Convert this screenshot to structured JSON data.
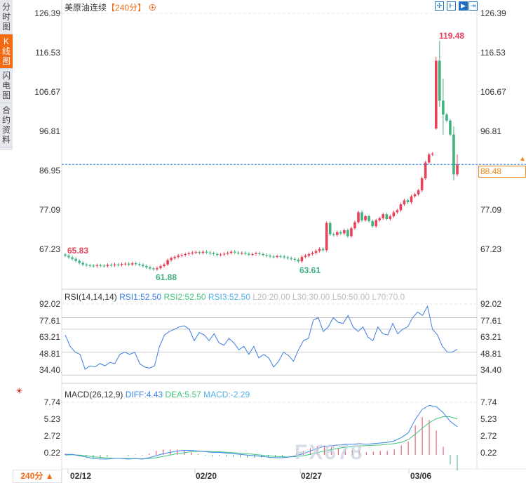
{
  "sidebar": {
    "tabs": [
      {
        "label": "分时图",
        "active": false
      },
      {
        "label": "K线图",
        "active": true
      },
      {
        "label": "闪电图",
        "active": false
      },
      {
        "label": "合约资料",
        "active": false
      }
    ]
  },
  "header": {
    "title": "美原油连续",
    "period": "【240分】",
    "zoom_icon": "plus-circle-icon"
  },
  "toolbar": {
    "icons": [
      "crosshair-icon",
      "range-icon",
      "play-icon",
      "exit-right-icon"
    ]
  },
  "colors": {
    "up": "#e8415a",
    "down": "#3fb27f",
    "accent": "#f26a12",
    "rsi1": "#3a7de0",
    "rsi2": "#3fc47a",
    "rsi3": "#4fb0e8",
    "diff": "#3a85e8",
    "dea": "#3fc47a"
  },
  "price_axis": {
    "labels": [
      "126.39",
      "116.53",
      "106.67",
      "96.81",
      "86.95",
      "77.09",
      "67.23"
    ],
    "max": 126.39,
    "min": 67.23
  },
  "current_price": "88.48",
  "markers": {
    "high": "119.48",
    "low1": "65.83",
    "low2": "61.88",
    "low3": "63.61"
  },
  "candles": {
    "close": [
      65.6,
      65.2,
      64.8,
      64.3,
      63.8,
      63.4,
      63.2,
      63.1,
      63.0,
      63.2,
      63.1,
      63.0,
      63.3,
      63.2,
      63.4,
      63.3,
      63.5,
      63.6,
      63.4,
      63.7,
      63.5,
      63.3,
      63.0,
      62.7,
      62.4,
      62.2,
      62.5,
      63.0,
      63.4,
      64.5,
      65.0,
      65.3,
      65.6,
      65.8,
      66.0,
      66.2,
      66.4,
      66.5,
      66.3,
      66.6,
      66.4,
      66.2,
      66.0,
      65.8,
      65.9,
      66.1,
      66.3,
      66.6,
      66.4,
      66.2,
      66.3,
      66.1,
      65.9,
      66.0,
      66.2,
      66.0,
      65.8,
      65.6,
      65.4,
      65.3,
      65.5,
      65.4,
      65.2,
      65.0,
      64.8,
      64.6,
      64.2,
      65.3,
      65.6,
      66.0,
      66.3,
      66.8,
      67.3,
      67.0,
      73.8,
      71.0,
      70.8,
      71.5,
      71.2,
      72.0,
      70.5,
      72.5,
      74.0,
      76.5,
      74.5,
      75.5,
      74.3,
      73.0,
      74.5,
      75.0,
      76.0,
      74.8,
      75.5,
      76.5,
      77.0,
      78.5,
      79.5,
      79.0,
      80.5,
      81.0,
      82.0,
      85.0,
      89.0,
      91.0,
      91.2,
      114.5,
      104.5,
      101.0,
      99.5,
      96.0,
      86.0,
      88.48
    ],
    "first_open": 65.9,
    "special": {
      "105": [
        97.5,
        115.5,
        97.2,
        114.5
      ],
      "106": [
        114.5,
        119.48,
        103.0,
        104.5
      ],
      "107": [
        104.5,
        110.0,
        96.0,
        101.0
      ],
      "110": [
        96.0,
        98.0,
        84.5,
        86.0
      ],
      "111": [
        86.0,
        91.0,
        85.5,
        88.48
      ]
    }
  },
  "rsi": {
    "label": "RSI(14,14,14)",
    "rsi1": "RSI1:52.50",
    "rsi2": "RSI2:52.50",
    "rsi3": "RSI3:52.50",
    "l20": "L20:20.00",
    "l30": "L30:30.00",
    "l50": "L50:50.00",
    "l70": "L70:70.0",
    "axis": [
      "92.02",
      "77.61",
      "63.21",
      "48.81",
      "34.40"
    ],
    "max": 92.02,
    "min": 34.4,
    "values": [
      65,
      55,
      50,
      48,
      35,
      38,
      37,
      40,
      38,
      41,
      40,
      48,
      50,
      48,
      50,
      40,
      37,
      36,
      38,
      55,
      65,
      68,
      70,
      72,
      73,
      70,
      60,
      67,
      65,
      60,
      66,
      58,
      56,
      62,
      58,
      52,
      55,
      48,
      55,
      45,
      48,
      45,
      37,
      42,
      50,
      47,
      42,
      52,
      60,
      62,
      78,
      80,
      68,
      72,
      80,
      76,
      75,
      82,
      72,
      68,
      72,
      63,
      60,
      72,
      66,
      65,
      75,
      66,
      70,
      72,
      80,
      85,
      82,
      90,
      70,
      65,
      55,
      50,
      50,
      52.5
    ]
  },
  "macd": {
    "label": "MACD(26,12,9)",
    "diff_label": "DIFF:4.43",
    "dea_label": "DEA:5.57",
    "macd_label": "MACD:-2.29",
    "axis": [
      "7.74",
      "5.23",
      "2.72",
      "0.22"
    ],
    "max": 7.74,
    "min": 0.22,
    "diff": [
      0.3,
      0.3,
      0.1,
      -0.1,
      -0.3,
      -0.4,
      -0.4,
      -0.3,
      -0.3,
      -0.4,
      -0.3,
      -0.4,
      -0.2,
      0.1,
      0.4,
      0.6,
      0.8,
      0.9,
      0.9,
      0.8,
      0.7,
      0.6,
      0.6,
      0.5,
      0.4,
      0.3,
      0.2,
      0.1,
      0.0,
      -0.1,
      -0.2,
      -0.2,
      -0.1,
      0.1,
      0.4,
      0.8,
      1.2,
      1.5,
      1.6,
      1.7,
      1.8,
      1.8,
      1.9,
      1.8,
      1.9,
      2.0,
      2.1,
      2.3,
      2.8,
      3.5,
      5.5,
      7.0,
      7.6,
      7.4,
      6.5,
      5.2,
      4.43
    ],
    "dea": [
      0.2,
      0.25,
      0.2,
      0.1,
      -0.05,
      -0.15,
      -0.25,
      -0.3,
      -0.3,
      -0.32,
      -0.33,
      -0.35,
      -0.3,
      -0.2,
      0,
      0.2,
      0.4,
      0.55,
      0.7,
      0.75,
      0.75,
      0.7,
      0.68,
      0.62,
      0.55,
      0.48,
      0.4,
      0.3,
      0.2,
      0.1,
      0,
      -0.05,
      -0.08,
      -0.02,
      0.1,
      0.3,
      0.55,
      0.8,
      1.0,
      1.2,
      1.35,
      1.45,
      1.55,
      1.6,
      1.65,
      1.7,
      1.8,
      1.9,
      2.1,
      2.5,
      3.3,
      4.2,
      5.0,
      5.6,
      5.9,
      5.9,
      5.57
    ]
  },
  "dates": [
    "02/12",
    "02/20",
    "02/27",
    "03/06"
  ],
  "period_selector": "240分 ▲",
  "watermark": "FX678"
}
